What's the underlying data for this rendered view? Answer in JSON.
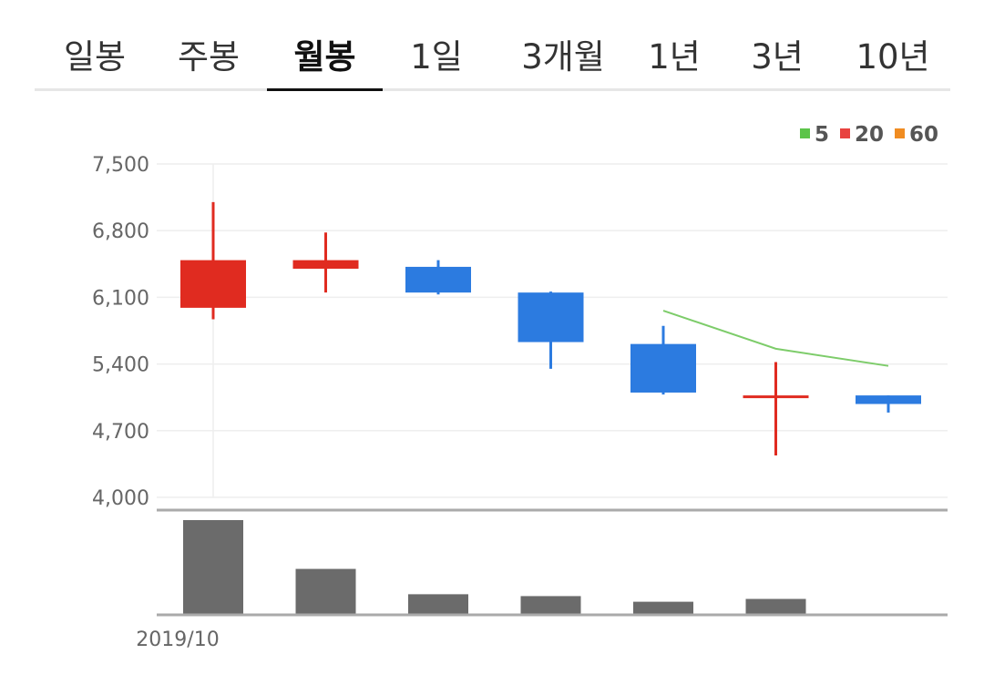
{
  "tabs": [
    {
      "label": "일봉",
      "active": false
    },
    {
      "label": "주봉",
      "active": false
    },
    {
      "label": "월봉",
      "active": true
    },
    {
      "label": "1일",
      "active": false
    },
    {
      "label": "3개월",
      "active": false
    },
    {
      "label": "1년",
      "active": false
    },
    {
      "label": "3년",
      "active": false
    },
    {
      "label": "10년",
      "active": false
    }
  ],
  "chart_data": {
    "type": "candlestick",
    "y_ticks": [
      "7,500",
      "6,800",
      "6,100",
      "5,400",
      "4,700",
      "4,000"
    ],
    "y_tick_values": [
      7500,
      6800,
      6100,
      5400,
      4700,
      4000
    ],
    "ylim": [
      4000,
      7500
    ],
    "x_label_first": "2019/10",
    "legend": [
      {
        "label": "5",
        "color": "#5cc44a"
      },
      {
        "label": "20",
        "color": "#e8423f"
      },
      {
        "label": "60",
        "color": "#f08c22"
      }
    ],
    "colors": {
      "up": "#e02b20",
      "down": "#2c7be0",
      "ma5": "#7dcc6a",
      "volume": "#6b6b6b",
      "grid": "#eeeeee"
    },
    "candles": [
      {
        "open": 5990,
        "high": 7100,
        "low": 5870,
        "close": 6490
      },
      {
        "open": 6400,
        "high": 6780,
        "low": 6150,
        "close": 6490
      },
      {
        "open": 6420,
        "high": 6490,
        "low": 6130,
        "close": 6150
      },
      {
        "open": 6150,
        "high": 6160,
        "low": 5350,
        "close": 5630
      },
      {
        "open": 5610,
        "high": 5800,
        "low": 5080,
        "close": 5100
      },
      {
        "open": 5060,
        "high": 5420,
        "low": 4440,
        "close": 5070
      },
      {
        "open": 5070,
        "high": 5070,
        "low": 4890,
        "close": 4980
      }
    ],
    "volume": [
      100,
      48,
      21,
      19,
      13,
      16,
      0
    ],
    "ma5": [
      null,
      null,
      null,
      null,
      5960,
      5560,
      5380
    ]
  }
}
